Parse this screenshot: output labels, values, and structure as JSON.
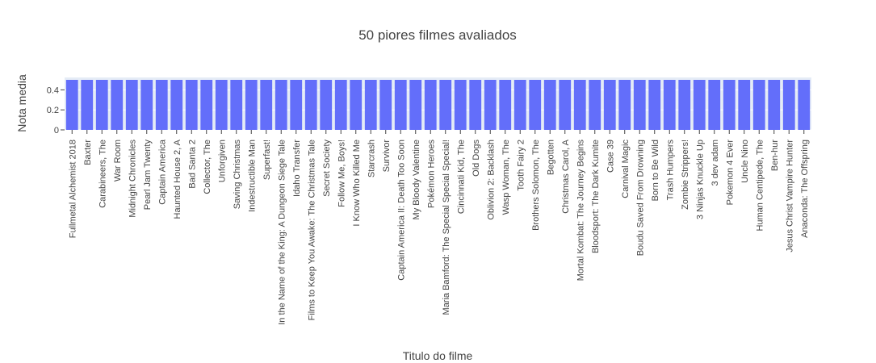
{
  "chart_data": {
    "type": "bar",
    "title": "50 piores filmes avaliados",
    "xlabel": "Titulo do filme",
    "ylabel": "Nota media",
    "ylim": [
      0,
      0.5
    ],
    "yticks": [
      "0",
      "0.2",
      "0.4"
    ],
    "grid": true,
    "bar_color": "#636efa",
    "plot_bg": "#e5ecf6",
    "categories": [
      "Fullmetal Alchemist 2018",
      "Baxter",
      "Carabineers, The",
      "War Room",
      "Midnight Chronicles",
      "Pearl Jam Twenty",
      "Captain America",
      "Haunted House 2, A",
      "Bad Santa 2",
      "Collector, The",
      "Unforgiven",
      "Saving Christmas",
      "Indestructible Man",
      "Superfast!",
      "In the Name of the King: A Dungeon Siege Tale",
      "Idaho Transfer",
      "Films to Keep You Awake: The Christmas Tale",
      "Secret Society",
      "Follow Me, Boys!",
      "I Know Who Killed Me",
      "Starcrash",
      "Survivor",
      "Captain America II: Death Too Soon",
      "My Bloody Valentine",
      "Pokémon Heroes",
      "Maria Bamford: The Special Special Special!",
      "Cincinnati Kid, The",
      "Old Dogs",
      "Oblivion 2: Backlash",
      "Wasp Woman, The",
      "Tooth Fairy 2",
      "Brothers Solomon, The",
      "Begotten",
      "Christmas Carol, A",
      "Mortal Kombat: The Journey Begins",
      "Bloodsport: The Dark Kumite",
      "Case 39",
      "Carnival Magic",
      "Boudu Saved From Drowning",
      "Born to Be Wild",
      "Trash Humpers",
      "Zombie Strippers!",
      "3 Ninjas Knuckle Up",
      "3 dev adam",
      "Pokemon 4 Ever",
      "Uncle Nino",
      "Human Centipede, The",
      "Ben-hur",
      "Jesus Christ Vampire Hunter",
      "Anaconda: The Offspring"
    ],
    "values": [
      0.5,
      0.5,
      0.5,
      0.5,
      0.5,
      0.5,
      0.5,
      0.5,
      0.5,
      0.5,
      0.5,
      0.5,
      0.5,
      0.5,
      0.5,
      0.5,
      0.5,
      0.5,
      0.5,
      0.5,
      0.5,
      0.5,
      0.5,
      0.5,
      0.5,
      0.5,
      0.5,
      0.5,
      0.5,
      0.5,
      0.5,
      0.5,
      0.5,
      0.5,
      0.5,
      0.5,
      0.5,
      0.5,
      0.5,
      0.5,
      0.5,
      0.5,
      0.5,
      0.5,
      0.5,
      0.5,
      0.5,
      0.5,
      0.5,
      0.5
    ]
  }
}
